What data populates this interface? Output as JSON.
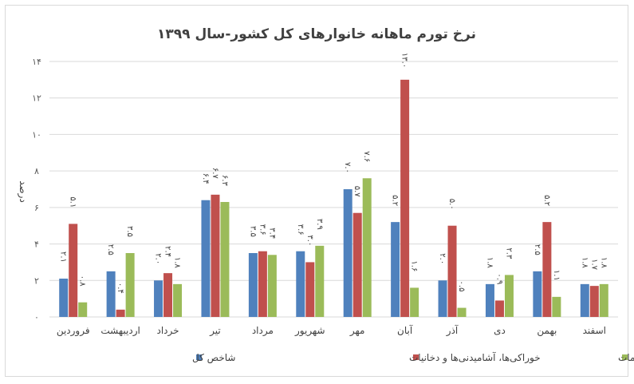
{
  "chart_data": {
    "type": "bar",
    "title": "نرخ تورم ماهانه خانوارهای کل کشور-سال ۱۳۹۹",
    "ylabel": "درصد",
    "xlabel": "",
    "ylim": [
      0,
      14
    ],
    "yticks": [
      "۰",
      "۲",
      "۴",
      "۶",
      "۸",
      "۱۰",
      "۱۲",
      "۱۴"
    ],
    "grid": true,
    "legend_position": "bottom",
    "categories": [
      "فروردین",
      "اردیبهشت",
      "خرداد",
      "تیر",
      "مرداد",
      "شهریور",
      "مهر",
      "آبان",
      "آذر",
      "دی",
      "بهمن",
      "اسفند"
    ],
    "series": [
      {
        "name": "شاخص کل",
        "color": "#4f81bd",
        "values": [
          2.1,
          2.5,
          2.0,
          6.4,
          3.5,
          3.6,
          7.0,
          5.2,
          2.0,
          1.8,
          2.5,
          1.8
        ],
        "labels": [
          "۲.۱",
          "۲.۵",
          "۲.۰",
          "۶.۴",
          "۳.۵",
          "۳.۶",
          "۷.۰",
          "۵.۲",
          "۲.۰",
          "۱.۸",
          "۲.۵",
          "۱.۸"
        ]
      },
      {
        "name": "خوراکی‌ها، آشامیدنی‌ها و دخانیات",
        "color": "#c0504d",
        "values": [
          5.1,
          0.4,
          2.4,
          6.7,
          3.6,
          3.0,
          5.7,
          13.0,
          5.0,
          0.9,
          5.2,
          1.7
        ],
        "labels": [
          "۵.۱",
          "۰.۴",
          "۲.۴",
          "۶.۷",
          "۳.۶",
          "۳.۰",
          "۵.۷",
          "۱۳.۰",
          "۵.۰",
          "۰.۹",
          "۵.۲",
          "۱.۷"
        ]
      },
      {
        "name": "کالاهای غیرخوراکی و خدمات",
        "color": "#9bbb59",
        "values": [
          0.8,
          3.5,
          1.8,
          6.3,
          3.4,
          3.9,
          7.6,
          1.6,
          0.5,
          2.3,
          1.1,
          1.8
        ],
        "labels": [
          "۰.۸",
          "۳.۵",
          "۱.۸",
          "۶.۳",
          "۳.۴",
          "۳.۹",
          "۷.۶",
          "۱.۶",
          "۰.۵",
          "۲.۳",
          "۱.۱",
          "۱.۸"
        ]
      }
    ]
  }
}
